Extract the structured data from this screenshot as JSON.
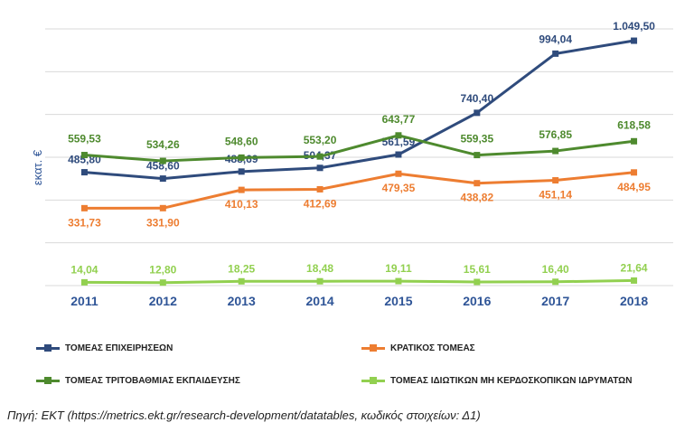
{
  "chart_data": {
    "type": "line",
    "categories": [
      "2011",
      "2012",
      "2013",
      "2014",
      "2015",
      "2016",
      "2017",
      "2018"
    ],
    "ylabel": "εκατ. €",
    "ylim": [
      0,
      1100
    ],
    "grid": true,
    "legend_position": "bottom",
    "series": [
      {
        "name": "ΤΟΜΕΑΣ ΕΠΙΧΕΙΡΗΣΕΩΝ",
        "color": "#2f4b7c",
        "values": [
          485.8,
          458.6,
          488.69,
          504.37,
          561.59,
          740.4,
          994.04,
          1049.5
        ],
        "labels": [
          "485,80",
          "458,60",
          "488,69",
          "504,37",
          "561,59",
          "740,40",
          "994,04",
          "1.049,50"
        ]
      },
      {
        "name": "ΚΡΑΤΙΚΟΣ ΤΟΜΕΑΣ",
        "color": "#ed7d31",
        "values": [
          331.73,
          331.9,
          410.13,
          412.69,
          479.35,
          438.82,
          451.14,
          484.95
        ],
        "labels": [
          "331,73",
          "331,90",
          "410,13",
          "412,69",
          "479,35",
          "438,82",
          "451,14",
          "484,95"
        ]
      },
      {
        "name": "ΤΟΜΕΑΣ ΤΡΙΤΟΒΑΘΜΙΑΣ ΕΚΠΑΙΔΕΥΣΗΣ",
        "color": "#4e8a2e",
        "values": [
          559.53,
          534.26,
          548.6,
          553.2,
          643.77,
          559.35,
          576.85,
          618.58
        ],
        "labels": [
          "559,53",
          "534,26",
          "548,60",
          "553,20",
          "643,77",
          "559,35",
          "576,85",
          "618,58"
        ]
      },
      {
        "name": "ΤΟΜΕΑΣ ΙΔΙΩΤΙΚΩΝ ΜΗ ΚΕΡΔΟΣΚΟΠΙΚΩΝ ΙΔΡΥΜΑΤΩΝ",
        "color": "#92d050",
        "values": [
          14.04,
          12.8,
          18.25,
          18.48,
          19.11,
          15.61,
          16.4,
          21.64
        ],
        "labels": [
          "14,04",
          "12,80",
          "18,25",
          "18,48",
          "19,11",
          "15,61",
          "16,40",
          "21,64"
        ]
      }
    ]
  },
  "source": "Πηγή: ΕΚΤ (https://metrics.ekt.gr/research-development/datatables, κωδικός στοιχείων: Δ1)"
}
